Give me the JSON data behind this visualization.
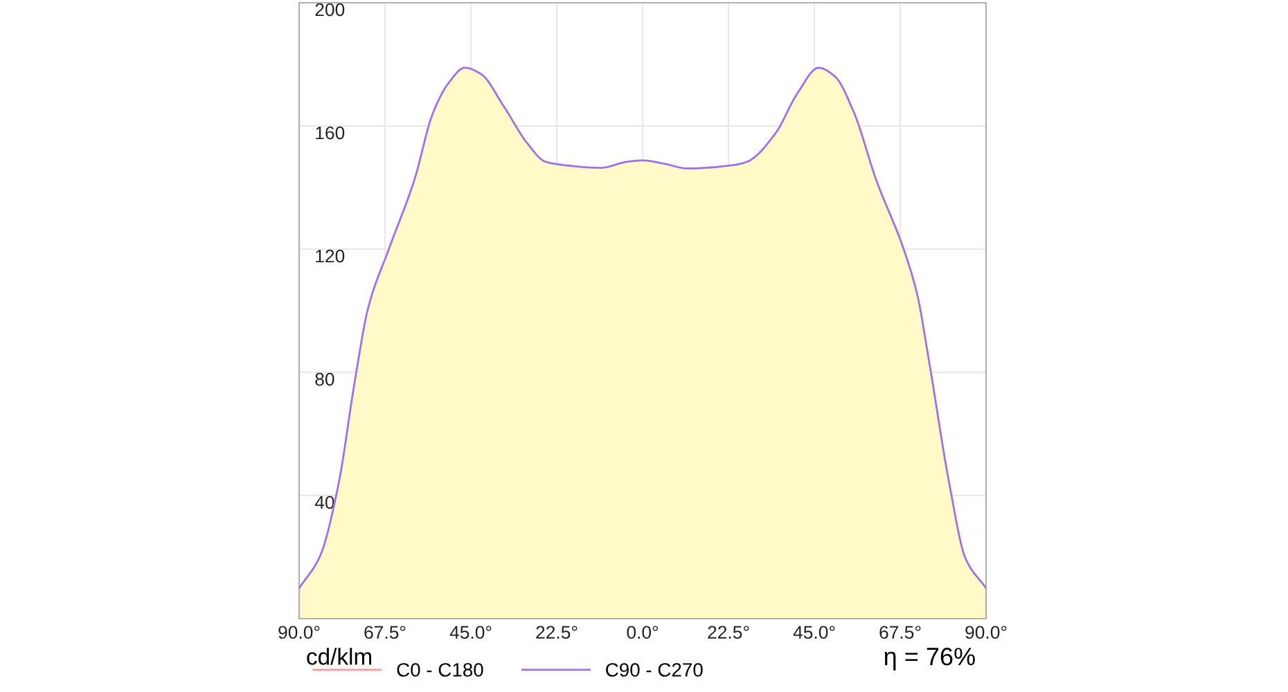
{
  "chart_data": {
    "type": "area",
    "annotations": [
      "cd/klm",
      "η = 76%"
    ],
    "x": [
      -90,
      -84.5,
      -79.7,
      -75.5,
      -71.9,
      -66.5,
      -59.8,
      -55,
      -50.8,
      -46.6,
      -42.4,
      -36.4,
      -30.3,
      -25.5,
      -20.7,
      -11.1,
      -3.9,
      0,
      5.8,
      11.8,
      23.8,
      27.4,
      34.7,
      40.7,
      46.1,
      50.3,
      55.2,
      61.2,
      68.4,
      72,
      75,
      80.4,
      84.6,
      90
    ],
    "series": [
      {
        "color": "#fffac8",
        "values": [
          9.9,
          20.4,
          43.6,
          76.5,
          101,
          120,
          142.5,
          164,
          174,
          178.9,
          176.9,
          166.4,
          154.5,
          148.4,
          147.3,
          146.4,
          148.4,
          148.8,
          147.7,
          146.2,
          147.3,
          148.4,
          157.4,
          170.9,
          178.9,
          176.2,
          164.9,
          142.5,
          120,
          105,
          84,
          43.6,
          19.6,
          9.9
        ]
      },
      {
        "name": "C0 - C180",
        "color": "#ff9999",
        "type": "line",
        "values": [
          null,
          null,
          null,
          null,
          null,
          null,
          null,
          null,
          null,
          null,
          null,
          null,
          null,
          null,
          null,
          null,
          null,
          null,
          null,
          null,
          null,
          null,
          null,
          null,
          null,
          null,
          null,
          null,
          null,
          null,
          null,
          null,
          null,
          null
        ]
      },
      {
        "name": "C90 - C270",
        "color": "#a070e8",
        "type": "line",
        "values": [
          9.9,
          20.4,
          43.6,
          76.5,
          101,
          120,
          142.5,
          164,
          174,
          178.9,
          176.9,
          166.4,
          154.5,
          148.4,
          147.3,
          146.4,
          148.4,
          148.8,
          147.7,
          146.2,
          147.3,
          148.4,
          157.4,
          170.9,
          178.9,
          176.2,
          164.9,
          142.5,
          120,
          105,
          84,
          43.6,
          19.6,
          9.9
        ]
      }
    ],
    "xlim": [
      -90,
      90
    ],
    "xticks": [
      {
        "value": -90,
        "label": "90.0°"
      },
      {
        "value": -67.5,
        "label": "67.5°"
      },
      {
        "value": -45,
        "label": "45.0°"
      },
      {
        "value": -22.5,
        "label": "22.5°"
      },
      {
        "value": 0,
        "label": "0.0°"
      },
      {
        "value": 22.5,
        "label": "22.5°"
      },
      {
        "value": 45,
        "label": "45.0°"
      },
      {
        "value": 67.5,
        "label": "67.5°"
      },
      {
        "value": 90,
        "label": "90.0°"
      }
    ],
    "ylim": [
      0,
      200
    ],
    "yticks": [
      40,
      80,
      120,
      160,
      200
    ],
    "grid": true,
    "legend": "bottom left"
  }
}
